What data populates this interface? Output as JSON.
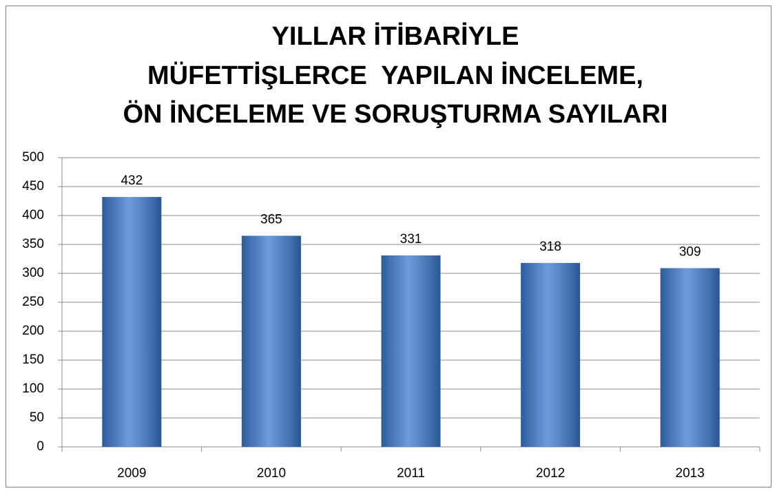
{
  "chart_data": {
    "type": "bar",
    "title": [
      "YILLAR İTİBARİYLE",
      "MÜFETTİŞLERCE  YAPILAN İNCELEME,",
      "ÖN İNCELEME VE SORUŞTURMA SAYILARI"
    ],
    "categories": [
      "2009",
      "2010",
      "2011",
      "2012",
      "2013"
    ],
    "values": [
      432,
      365,
      331,
      318,
      309
    ],
    "color": "#3c7bd2",
    "ylim": [
      0,
      500
    ],
    "yticks": [
      0,
      50,
      100,
      150,
      200,
      250,
      300,
      350,
      400,
      450,
      500
    ],
    "grid": true
  }
}
